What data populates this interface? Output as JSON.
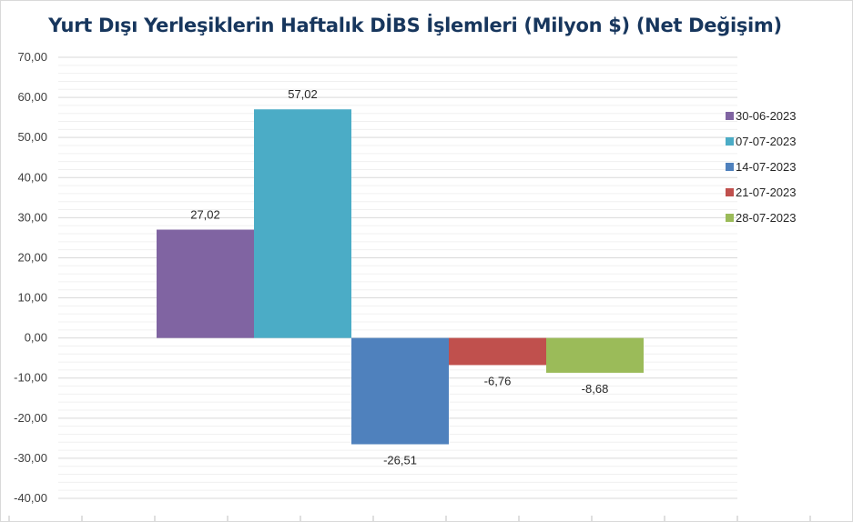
{
  "chart_data": {
    "type": "bar",
    "title": "Yurt Dışı Yerleşiklerin Haftalık DİBS İşlemleri (Milyon $) (Net Değişim)",
    "xlabel": "",
    "ylabel": "",
    "ylim": [
      -40,
      70
    ],
    "yticks": [
      70,
      60,
      50,
      40,
      30,
      20,
      10,
      0,
      -10,
      -20,
      -30,
      -40
    ],
    "ytick_labels": [
      "70,00",
      "60,00",
      "50,00",
      "40,00",
      "30,00",
      "20,00",
      "10,00",
      "0,00",
      "-10,00",
      "-20,00",
      "-30,00",
      "-40,00"
    ],
    "grid": true,
    "legend_position": "right",
    "series": [
      {
        "name": "30-06-2023",
        "value": 27.02,
        "label": "27,02",
        "color": "#8064a2"
      },
      {
        "name": "07-07-2023",
        "value": 57.02,
        "label": "57,02",
        "color": "#4bacc6"
      },
      {
        "name": "14-07-2023",
        "value": -26.51,
        "label": "-26,51",
        "color": "#4f81bd"
      },
      {
        "name": "21-07-2023",
        "value": -6.76,
        "label": "-6,76",
        "color": "#c0504d"
      },
      {
        "name": "28-07-2023",
        "value": -8.68,
        "label": "-8,68",
        "color": "#9bbb59"
      }
    ]
  }
}
